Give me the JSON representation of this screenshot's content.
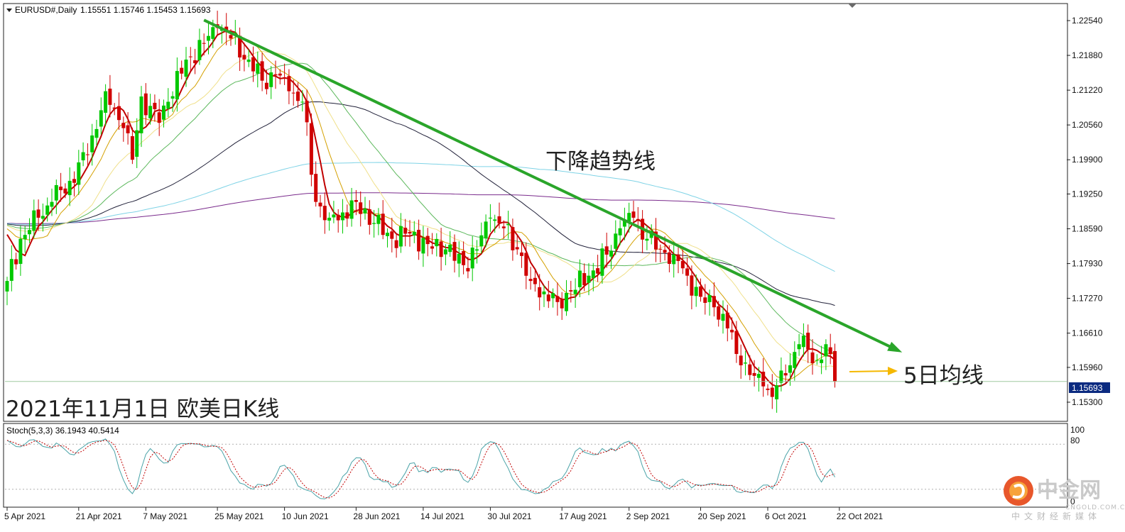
{
  "header": {
    "symbol": "EURUSD#,Daily",
    "ohlc": "1.15551 1.15746 1.15453 1.15693"
  },
  "main_title": "2021年11月1日 欧美日K线",
  "annotations": {
    "trendline": "下降趋势线",
    "ma5": "5日均线"
  },
  "indicator": {
    "label": "Stoch(5,3,3) 36.1943 40.5414",
    "levels": [
      "100",
      "80",
      "0"
    ]
  },
  "watermark": {
    "brand": "中金网",
    "site": "CNGOLD.COM.CN",
    "sub": "中文财经新媒体"
  },
  "colors": {
    "bull": "#00c800",
    "bear": "#d00000",
    "trendline": "#2aa52a",
    "ma5": "#c00000",
    "arrow": "#f5b800",
    "price_label_bg": "#0b2a80"
  },
  "chart_data": {
    "type": "candlestick",
    "symbol": "EURUSD#",
    "timeframe": "Daily",
    "current_price": "1.15693",
    "y_ticks": [
      "1.22540",
      "1.21880",
      "1.21220",
      "1.20560",
      "1.19900",
      "1.19250",
      "1.18590",
      "1.17930",
      "1.17270",
      "1.16610",
      "1.15960",
      "1.15300"
    ],
    "x_ticks": [
      "5 Apr 2021",
      "21 Apr 2021",
      "7 May 2021",
      "25 May 2021",
      "10 Jun 2021",
      "28 Jun 2021",
      "14 Jul 2021",
      "30 Jul 2021",
      "17 Aug 2021",
      "2 Sep 2021",
      "20 Sep 2021",
      "6 Oct 2021",
      "22 Oct 2021"
    ],
    "ylim": [
      1.1495,
      1.2285
    ],
    "close_anchors": [
      [
        0,
        1.176
      ],
      [
        3,
        1.184
      ],
      [
        7,
        1.188
      ],
      [
        10,
        1.191
      ],
      [
        14,
        1.195
      ],
      [
        18,
        1.2
      ],
      [
        22,
        1.212
      ],
      [
        26,
        1.205
      ],
      [
        28,
        1.199
      ],
      [
        30,
        1.211
      ],
      [
        34,
        1.206
      ],
      [
        36,
        1.21
      ],
      [
        40,
        1.218
      ],
      [
        44,
        1.221
      ],
      [
        47,
        1.224
      ],
      [
        50,
        1.222
      ],
      [
        54,
        1.218
      ],
      [
        57,
        1.214
      ],
      [
        60,
        1.215
      ],
      [
        63,
        1.212
      ],
      [
        66,
        1.21
      ],
      [
        69,
        1.191
      ],
      [
        72,
        1.188
      ],
      [
        75,
        1.189
      ],
      [
        78,
        1.191
      ],
      [
        82,
        1.187
      ],
      [
        86,
        1.184
      ],
      [
        90,
        1.185
      ],
      [
        94,
        1.183
      ],
      [
        98,
        1.182
      ],
      [
        102,
        1.179
      ],
      [
        105,
        1.182
      ],
      [
        108,
        1.188
      ],
      [
        111,
        1.186
      ],
      [
        114,
        1.182
      ],
      [
        117,
        1.176
      ],
      [
        120,
        1.174
      ],
      [
        123,
        1.172
      ],
      [
        126,
        1.174
      ],
      [
        130,
        1.177
      ],
      [
        134,
        1.181
      ],
      [
        137,
        1.186
      ],
      [
        140,
        1.188
      ],
      [
        143,
        1.184
      ],
      [
        146,
        1.182
      ],
      [
        149,
        1.181
      ],
      [
        152,
        1.177
      ],
      [
        155,
        1.173
      ],
      [
        158,
        1.171
      ],
      [
        161,
        1.167
      ],
      [
        164,
        1.16
      ],
      [
        167,
        1.158
      ],
      [
        169,
        1.156
      ],
      [
        171,
        1.154
      ],
      [
        173,
        1.159
      ],
      [
        175,
        1.16
      ],
      [
        177,
        1.164
      ],
      [
        179,
        1.163
      ],
      [
        181,
        1.161
      ],
      [
        183,
        1.164
      ],
      [
        185,
        1.1569
      ]
    ],
    "moving_averages": [
      {
        "color": "#c00000",
        "period_hint": 5
      },
      {
        "color": "#d4a000",
        "period_hint": 10
      },
      {
        "color": "#f0e08a",
        "period_hint": 20
      },
      {
        "color": "#5cb85c",
        "period_hint": 30
      },
      {
        "color": "#22223a",
        "period_hint": 60
      },
      {
        "color": "#7fd3e6",
        "period_hint": 120
      },
      {
        "color": "#7a2b8c",
        "period_hint": 240
      }
    ],
    "trendline": {
      "from": [
        44,
        1.2255
      ],
      "to": [
        196,
        1.1628
      ]
    },
    "stochastic": {
      "k": 36.1943,
      "d": 40.5414,
      "upper": 80,
      "lower": 20
    }
  }
}
